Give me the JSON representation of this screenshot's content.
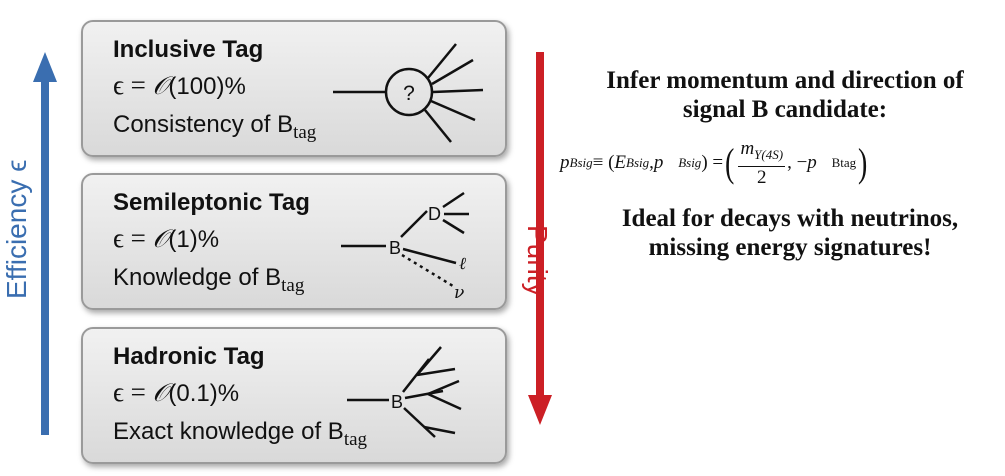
{
  "efficiency_label": "Efficiency ϵ",
  "purity_label": "Purity",
  "colors": {
    "efficiency_arrow": "#3a6eb0",
    "purity_arrow": "#cc1f25"
  },
  "tags": [
    {
      "title": "Inclusive Tag",
      "efficiency_prefix": "ϵ = ",
      "efficiency_O": "𝒪",
      "efficiency_value": "(100)%",
      "description": "Consistency of B",
      "description_sub": "tag",
      "diagram": {
        "node_label": "?"
      }
    },
    {
      "title": "Semileptonic Tag",
      "efficiency_prefix": "ϵ = ",
      "efficiency_O": "𝒪",
      "efficiency_value": "(1)%",
      "description": "Knowledge of B",
      "description_sub": "tag",
      "diagram": {
        "node_label": "B",
        "child_label": "D",
        "lepton_label": "ℓ",
        "neutrino_label": "ν"
      }
    },
    {
      "title": "Hadronic Tag",
      "efficiency_prefix": "ϵ = ",
      "efficiency_O": "𝒪",
      "efficiency_value": "(0.1)%",
      "description": "Exact knowledge of B",
      "description_sub": "tag",
      "diagram": {
        "node_label": "B"
      }
    }
  ],
  "right_panel": {
    "heading_line1": "Infer momentum and direction of",
    "heading_line2": "signal B candidate:",
    "note_line1": "Ideal for decays with neutrinos,",
    "note_line2": "missing energy signatures!"
  },
  "formula": {
    "lhs": "p",
    "lhs_sub": "Bsig",
    "equiv": " ≡ (",
    "e": "E",
    "e_sub": "Bsig",
    "comma1": ", ",
    "pvec": "p⃗",
    "pvec_sub": "Bsig",
    "close_eq": ") = ",
    "num": "m",
    "num_sub": "Υ(4S)",
    "den": "2",
    "comma2": ", −",
    "pvec2": "p⃗",
    "pvec2_sub": "Btag"
  }
}
